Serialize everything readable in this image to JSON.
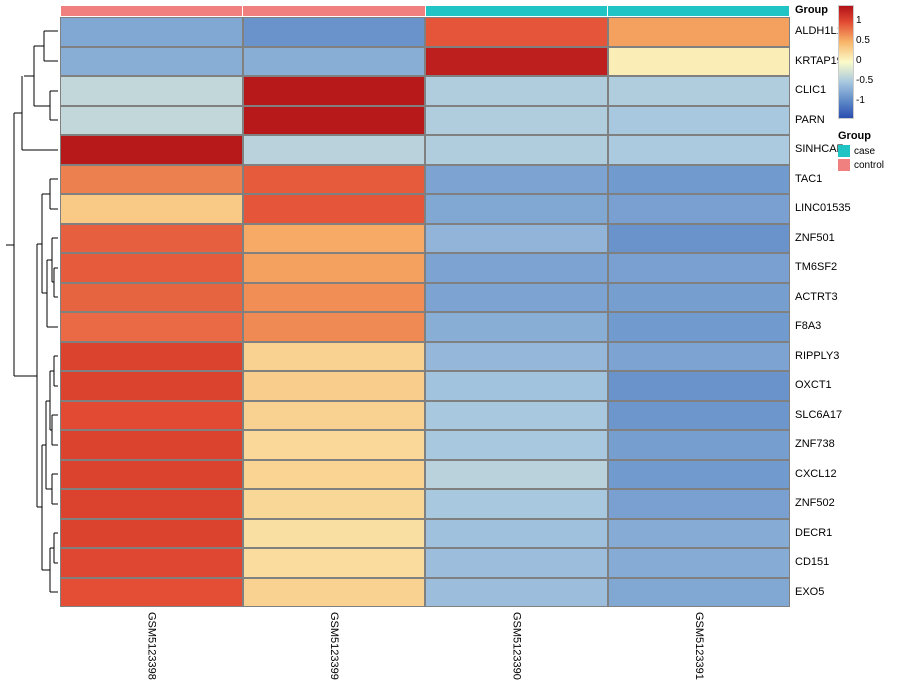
{
  "group_annotation": {
    "label": "Group",
    "categories": [
      "control",
      "case"
    ],
    "colors": {
      "control": "#f08080",
      "case": "#20c4c4"
    },
    "assignment": [
      "control",
      "control",
      "case",
      "case"
    ]
  },
  "columns": [
    "GSM5123398",
    "GSM5123399",
    "GSM5123390",
    "GSM5123391"
  ],
  "rows": [
    "ALDH1L1",
    "KRTAP19-1",
    "CLIC1",
    "PARN",
    "SINHCAF",
    "TAC1",
    "LINC01535",
    "ZNF501",
    "TM6SF2",
    "ACTRT3",
    "F8A3",
    "RIPPLY3",
    "OXCT1",
    "SLC6A17",
    "ZNF738",
    "CXCL12",
    "ZNF502",
    "DECR1",
    "CD151",
    "EXO5"
  ],
  "values": [
    [
      -0.75,
      -0.9,
      0.95,
      0.6
    ],
    [
      -0.7,
      -0.7,
      1.3,
      0.1
    ],
    [
      -0.35,
      1.35,
      -0.45,
      -0.45
    ],
    [
      -0.35,
      1.35,
      -0.45,
      -0.5
    ],
    [
      1.35,
      -0.4,
      -0.45,
      -0.48
    ],
    [
      0.75,
      0.92,
      -0.78,
      -0.85
    ],
    [
      0.35,
      0.95,
      -0.75,
      -0.8
    ],
    [
      0.9,
      0.55,
      -0.65,
      -0.9
    ],
    [
      0.92,
      0.6,
      -0.78,
      -0.8
    ],
    [
      0.88,
      0.68,
      -0.78,
      -0.82
    ],
    [
      0.85,
      0.7,
      -0.7,
      -0.85
    ],
    [
      1.05,
      0.3,
      -0.62,
      -0.78
    ],
    [
      1.05,
      0.32,
      -0.54,
      -0.9
    ],
    [
      1.0,
      0.3,
      -0.5,
      -0.88
    ],
    [
      1.05,
      0.25,
      -0.5,
      -0.82
    ],
    [
      1.05,
      0.28,
      -0.4,
      -0.85
    ],
    [
      1.05,
      0.26,
      -0.5,
      -0.8
    ],
    [
      1.05,
      0.2,
      -0.55,
      -0.72
    ],
    [
      1.02,
      0.22,
      -0.58,
      -0.72
    ],
    [
      0.98,
      0.3,
      -0.58,
      -0.75
    ]
  ],
  "color_scale": {
    "min": -1.4,
    "max": 1.4,
    "stops": [
      {
        "v": -1.4,
        "c": "#2b4db0"
      },
      {
        "v": -1.0,
        "c": "#5a86c6"
      },
      {
        "v": -0.5,
        "c": "#a8c8e0"
      },
      {
        "v": 0.0,
        "c": "#fbfbc8"
      },
      {
        "v": 0.5,
        "c": "#f8b56a"
      },
      {
        "v": 1.0,
        "c": "#e24a33"
      },
      {
        "v": 1.4,
        "c": "#b11117"
      }
    ],
    "ticks": [
      1,
      0.5,
      0,
      -0.5,
      -1
    ]
  },
  "cell_border_color": "#808080",
  "dendrogram": {
    "stroke": "#000000",
    "stroke_width": 1,
    "segments": [
      [
        42,
        14,
        56,
        14
      ],
      [
        42,
        44,
        56,
        44
      ],
      [
        42,
        14,
        42,
        44
      ],
      [
        32,
        29,
        42,
        29
      ],
      [
        48,
        74,
        56,
        74
      ],
      [
        48,
        103,
        56,
        103
      ],
      [
        48,
        74,
        48,
        103
      ],
      [
        32,
        89,
        48,
        89
      ],
      [
        32,
        29,
        32,
        89
      ],
      [
        22,
        59,
        32,
        59
      ],
      [
        20,
        133,
        56,
        133
      ],
      [
        20,
        59,
        20,
        133
      ],
      [
        12,
        96,
        20,
        96
      ],
      [
        48,
        162,
        56,
        162
      ],
      [
        48,
        192,
        56,
        192
      ],
      [
        48,
        162,
        48,
        192
      ],
      [
        40,
        177,
        48,
        177
      ],
      [
        50,
        221,
        56,
        221
      ],
      [
        52,
        251,
        56,
        251
      ],
      [
        52,
        280,
        56,
        280
      ],
      [
        52,
        251,
        52,
        280
      ],
      [
        50,
        221,
        50,
        265
      ],
      [
        50,
        265,
        52,
        265
      ],
      [
        45,
        243,
        50,
        243
      ],
      [
        45,
        310,
        56,
        310
      ],
      [
        45,
        243,
        45,
        310
      ],
      [
        40,
        177,
        40,
        276
      ],
      [
        40,
        276,
        45,
        276
      ],
      [
        35,
        227,
        40,
        227
      ],
      [
        52,
        339,
        56,
        339
      ],
      [
        52,
        369,
        56,
        369
      ],
      [
        52,
        339,
        52,
        369
      ],
      [
        48,
        354,
        52,
        354
      ],
      [
        50,
        398,
        56,
        398
      ],
      [
        50,
        428,
        56,
        428
      ],
      [
        50,
        398,
        50,
        428
      ],
      [
        48,
        413,
        50,
        413
      ],
      [
        48,
        354,
        48,
        413
      ],
      [
        44,
        384,
        48,
        384
      ],
      [
        50,
        457,
        56,
        457
      ],
      [
        50,
        487,
        56,
        487
      ],
      [
        50,
        457,
        50,
        487
      ],
      [
        44,
        472,
        50,
        472
      ],
      [
        44,
        384,
        44,
        472
      ],
      [
        40,
        428,
        44,
        428
      ],
      [
        52,
        516,
        56,
        516
      ],
      [
        52,
        546,
        56,
        546
      ],
      [
        52,
        516,
        52,
        546
      ],
      [
        48,
        531,
        52,
        531
      ],
      [
        48,
        575,
        56,
        575
      ],
      [
        48,
        531,
        48,
        575
      ],
      [
        40,
        553,
        48,
        553
      ],
      [
        40,
        428,
        40,
        553
      ],
      [
        35,
        227,
        35,
        490
      ],
      [
        35,
        490,
        40,
        490
      ],
      [
        12,
        96,
        12,
        359
      ],
      [
        12,
        359,
        35,
        359
      ],
      [
        4,
        228,
        12,
        228
      ]
    ]
  },
  "legend": {
    "group_title": "Group",
    "items": [
      {
        "label": "case",
        "color": "#20c4c4"
      },
      {
        "label": "control",
        "color": "#f08080"
      }
    ]
  }
}
